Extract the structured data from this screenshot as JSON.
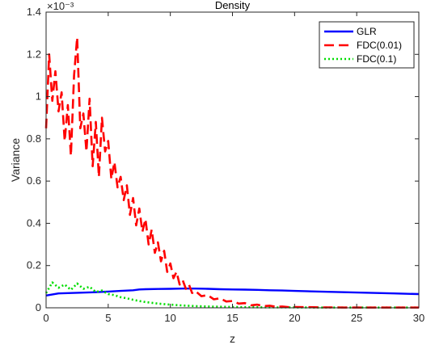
{
  "chart_data": {
    "type": "line",
    "title": "Density",
    "xlabel": "z",
    "ylabel": "Variance",
    "y_exponent_label": "×10⁻³",
    "xlim": [
      0,
      30
    ],
    "ylim": [
      0,
      0.0014
    ],
    "x_ticks": [
      0,
      5,
      10,
      15,
      20,
      25,
      30
    ],
    "x_tick_labels": [
      "0",
      "5",
      "10",
      "15",
      "20",
      "25",
      "30"
    ],
    "y_ticks": [
      0,
      0.0002,
      0.0004,
      0.0006,
      0.0008,
      0.001,
      0.0012,
      0.0014
    ],
    "y_tick_labels": [
      "0",
      "0.2",
      "0.4",
      "0.6",
      "0.8",
      "1",
      "1.2",
      "1.4"
    ],
    "grid": false,
    "legend_position": "top-right",
    "series": [
      {
        "name": "GLR",
        "color": "#0000ff",
        "style": "solid",
        "x": [
          0,
          1,
          2,
          3,
          4,
          5,
          6,
          7,
          7.5,
          8,
          9,
          10,
          11,
          12,
          13,
          14,
          15,
          16,
          17,
          18,
          19,
          20,
          22,
          24,
          26,
          28,
          30
        ],
        "y": [
          5.8e-05,
          6.8e-05,
          7e-05,
          7.2e-05,
          7.4e-05,
          7.7e-05,
          8e-05,
          8.3e-05,
          8.7e-05,
          8.8e-05,
          8.9e-05,
          9e-05,
          9.1e-05,
          9.1e-05,
          9e-05,
          8.8e-05,
          8.7e-05,
          8.6e-05,
          8.5e-05,
          8.3e-05,
          8.2e-05,
          8e-05,
          7.7e-05,
          7.4e-05,
          7.1e-05,
          6.8e-05,
          6.5e-05
        ]
      },
      {
        "name": "FDC(0.01)",
        "color": "#ff0000",
        "style": "dashed",
        "x": [
          0,
          0.25,
          0.5,
          0.75,
          1,
          1.25,
          1.5,
          1.75,
          2,
          2.25,
          2.5,
          2.75,
          3,
          3.25,
          3.5,
          3.75,
          4,
          4.25,
          4.5,
          4.75,
          5,
          5.25,
          5.5,
          5.75,
          6,
          6.25,
          6.5,
          6.75,
          7,
          7.25,
          7.5,
          7.75,
          8,
          8.25,
          8.5,
          8.75,
          9,
          9.25,
          9.5,
          9.75,
          10,
          10.25,
          10.5,
          10.75,
          11,
          11.25,
          11.5,
          11.75,
          12,
          12.5,
          13,
          13.5,
          14,
          14.5,
          15,
          15.5,
          16,
          16.5,
          17,
          17.5,
          18,
          18.5,
          19,
          19.5,
          20,
          21,
          22,
          23,
          24,
          25,
          26,
          27,
          28,
          29,
          30
        ],
        "y": [
          0.00085,
          0.0012,
          0.00098,
          0.00112,
          0.00093,
          0.00102,
          0.00079,
          0.00096,
          0.00072,
          0.0011,
          0.00128,
          0.00085,
          0.00092,
          0.00074,
          0.00099,
          0.00067,
          0.00088,
          0.00062,
          0.0009,
          0.00074,
          0.00079,
          0.00061,
          0.00069,
          0.00057,
          0.00062,
          0.00051,
          0.00058,
          0.00044,
          0.00052,
          0.00039,
          0.00047,
          0.00036,
          0.00042,
          0.0003,
          0.00037,
          0.00026,
          0.00031,
          0.00022,
          0.00027,
          0.00017,
          0.00021,
          0.00014,
          0.00017,
          0.00011,
          0.00013,
          9e-05,
          0.00011,
          7e-05,
          8e-05,
          5.5e-05,
          6e-05,
          4e-05,
          4.5e-05,
          3e-05,
          3.2e-05,
          2e-05,
          2.2e-05,
          1.2e-05,
          1.5e-05,
          8e-06,
          1e-05,
          5e-06,
          6e-06,
          3e-06,
          4e-06,
          3e-06,
          2e-06,
          2e-06,
          1e-06,
          1e-06,
          1e-06,
          1e-06,
          1e-06,
          1e-06,
          1e-06
        ]
      },
      {
        "name": "FDC(0.1)",
        "color": "#00dd00",
        "style": "dotted",
        "x": [
          0,
          0.5,
          1,
          1.5,
          2,
          2.5,
          3,
          3.5,
          4,
          4.5,
          5,
          5.5,
          6,
          6.5,
          7,
          7.5,
          8,
          9,
          10,
          11,
          12,
          13,
          14,
          15,
          16,
          18,
          20,
          22,
          25,
          28,
          30
        ],
        "y": [
          7e-05,
          0.00012,
          9.5e-05,
          0.00011,
          8.5e-05,
          0.000115,
          9e-05,
          0.0001,
          7.5e-05,
          8.2e-05,
          6.5e-05,
          6e-05,
          5e-05,
          4.5e-05,
          3.8e-05,
          3.2e-05,
          2.7e-05,
          2e-05,
          1.5e-05,
          1.1e-05,
          8e-06,
          6e-06,
          5e-06,
          4e-06,
          3e-06,
          2e-06,
          2e-06,
          1e-06,
          1e-06,
          1e-06,
          1e-06
        ]
      }
    ]
  }
}
